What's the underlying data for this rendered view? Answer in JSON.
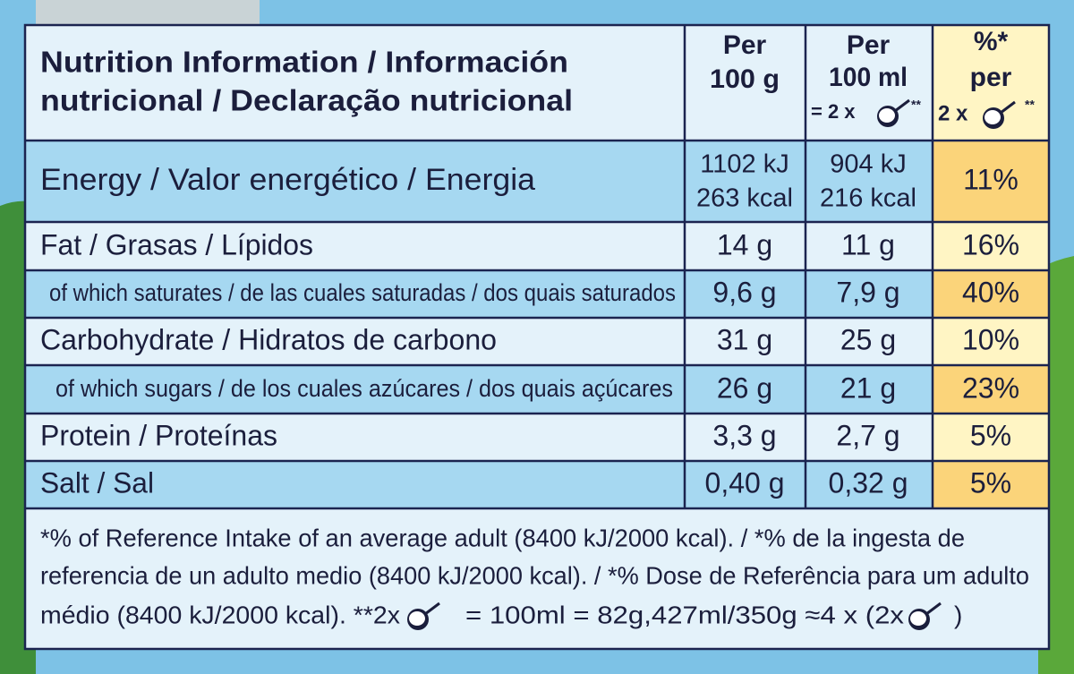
{
  "header": {
    "title_lines": [
      "Nutrition Information / Información",
      "nutricional / Declaração nutricional"
    ],
    "per_100g": [
      "Per",
      "100 g"
    ],
    "per_100ml": [
      "Per",
      "100 ml",
      "= 2 x",
      "**"
    ],
    "ri": [
      "%*",
      "per",
      "2 x",
      "**"
    ]
  },
  "rows": [
    {
      "label": "Energy / Valor energético / Energia",
      "per_100g": [
        "1102 kJ",
        "263 kcal"
      ],
      "per_100ml": [
        "904 kJ",
        "216 kcal"
      ],
      "ri": "11%"
    },
    {
      "label": "Fat / Grasas / Lípidos",
      "per_100g": [
        "14 g"
      ],
      "per_100ml": [
        "11 g"
      ],
      "ri": "16%"
    },
    {
      "label": "of which saturates / de las cuales saturadas / dos quais saturados",
      "per_100g": [
        "9,6 g"
      ],
      "per_100ml": [
        "7,9 g"
      ],
      "ri": "40%"
    },
    {
      "label": "Carbohydrate / Hidratos de carbono",
      "per_100g": [
        "31 g"
      ],
      "per_100ml": [
        "25 g"
      ],
      "ri": "10%"
    },
    {
      "label": "of which sugars / de los cuales azúcares / dos quais açúcares",
      "per_100g": [
        "26 g"
      ],
      "per_100ml": [
        "21 g"
      ],
      "ri": "23%"
    },
    {
      "label": "Protein / Proteínas",
      "per_100g": [
        "3,3 g"
      ],
      "per_100ml": [
        "2,7 g"
      ],
      "ri": "5%"
    },
    {
      "label": "Salt / Sal",
      "per_100g": [
        "0,40 g"
      ],
      "per_100ml": [
        "0,32 g"
      ],
      "ri": "5%"
    }
  ],
  "footnote": [
    "*% of Reference Intake of an average adult (8400 kJ/2000 kcal). / *% de la ingesta de",
    "referencia de un adulto medio (8400 kJ/2000 kcal). / *% Dose de Referência para um adulto",
    "médio (8400 kJ/2000 kcal).  **2x",
    "= 100ml = 82g,427ml/350g ≈4 x (2x",
    ")"
  ]
}
